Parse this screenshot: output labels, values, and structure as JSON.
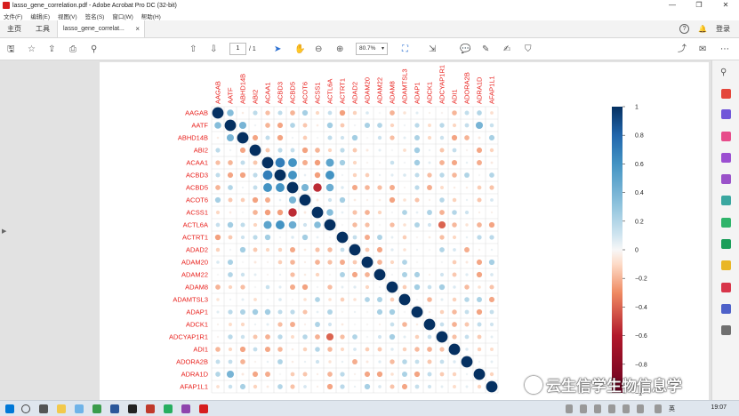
{
  "window": {
    "title": "lasso_gene_correlation.pdf - Adobe Acrobat Pro DC (32-bit)",
    "controls": [
      "—",
      "❐",
      "✕"
    ]
  },
  "menu": [
    "文件(F)",
    "编辑(E)",
    "视图(V)",
    "签名(S)",
    "窗口(W)",
    "帮助(H)"
  ],
  "tabs": {
    "home": "主页",
    "tools": "工具",
    "doc": "lasso_gene_correlat...",
    "doc_close": "×",
    "help": "?",
    "bell": "🔔",
    "login": "登录"
  },
  "toolbar": {
    "page_current": "1",
    "page_total": "/ 1",
    "zoom": "80.7%",
    "zoom_chev": "▾"
  },
  "icons": {
    "save": "🖫",
    "star": "☆",
    "upload": "⇪",
    "print": "⎙",
    "find": "⚲",
    "up": "⇧",
    "down": "⇩",
    "cursor": "➤",
    "hand": "✋",
    "zoom_out": "⊖",
    "zoom_in": "⊕",
    "fit": "⛶",
    "measure": "⇲",
    "comment": "💬",
    "pen": "✎",
    "sign": "✍",
    "stamp": "⛉",
    "share": "⤴",
    "mail": "✉",
    "more": "⋯",
    "left": "◀",
    "right": "▶"
  },
  "taskbar": {
    "time": "19:07",
    "tray": "英"
  },
  "watermark": "云生信学生物信息学",
  "colors": {
    "accent": "#2a6fd1",
    "label_red": "#e8211d",
    "scale_pos": "#053061",
    "scale_neg": "#67001f"
  },
  "chart_data": {
    "type": "heatmap",
    "title": "",
    "genes": [
      "AAGAB",
      "AATF",
      "ABHD14B",
      "ABI2",
      "ACAA1",
      "ACBD3",
      "ACBD5",
      "ACOT6",
      "ACSS1",
      "ACTL6A",
      "ACTRT1",
      "ADAD2",
      "ADAM20",
      "ADAM22",
      "ADAM8",
      "ADAMTSL3",
      "ADAP1",
      "ADCK1",
      "ADCYAP1R1",
      "ADI1",
      "ADORA2B",
      "ADRA1D",
      "AFAP1L1"
    ],
    "legend_ticks": [
      "1",
      "0.8",
      "0.6",
      "0.4",
      "0.2",
      "0",
      "−0.2",
      "−0.4",
      "−0.6",
      "−0.8",
      "−1"
    ],
    "color_range": [
      -1,
      1
    ],
    "strong_pairs": [
      [
        "ACAA1",
        "ACBD3",
        0.7
      ],
      [
        "ACAA1",
        "ACBD5",
        0.6
      ],
      [
        "ACAA1",
        "ACTL6A",
        0.5
      ],
      [
        "ACBD3",
        "ACBD5",
        0.6
      ],
      [
        "ACBD3",
        "ACTL6A",
        0.6
      ],
      [
        "ACBD5",
        "ACOT6",
        0.4
      ],
      [
        "ACBD5",
        "ACSS1",
        -0.55
      ],
      [
        "ACBD5",
        "ACTL6A",
        0.45
      ],
      [
        "ACSS1",
        "ACTL6A",
        0.35
      ],
      [
        "AATF",
        "ABHD14B",
        0.4
      ],
      [
        "AATF",
        "ADRA1D",
        0.4
      ],
      [
        "AAGAB",
        "AATF",
        0.35
      ],
      [
        "ACTL6A",
        "ADCYAP1R1",
        -0.4
      ],
      [
        "ACBD3",
        "ACSS1",
        -0.25
      ],
      [
        "ACAA1",
        "ACSS1",
        -0.25
      ]
    ]
  }
}
